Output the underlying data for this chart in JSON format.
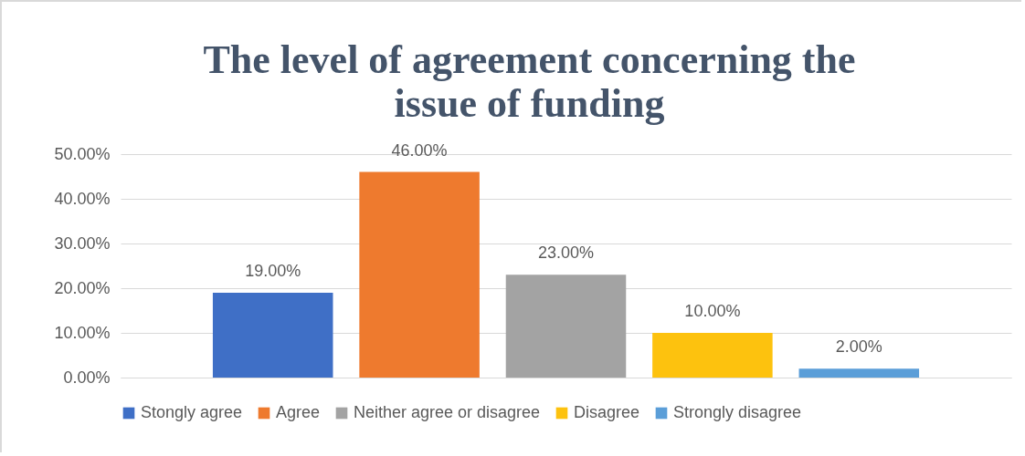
{
  "chart_data": {
    "type": "bar",
    "title": "The level of agreement concerning the issue of funding",
    "categories": [
      null
    ],
    "series": [
      {
        "name": "Stongly agree",
        "color": "#3f6fc6",
        "values": [
          19
        ],
        "value_labels": [
          "19.00%"
        ]
      },
      {
        "name": "Agree",
        "color": "#ee7a2e",
        "values": [
          46
        ],
        "value_labels": [
          "46.00%"
        ]
      },
      {
        "name": "Neither agree or disagree",
        "color": "#a3a3a3",
        "values": [
          23
        ],
        "value_labels": [
          "23.00%"
        ]
      },
      {
        "name": "Disagree",
        "color": "#fdc20e",
        "values": [
          10
        ],
        "value_labels": [
          "10.00%"
        ]
      },
      {
        "name": "Strongly disagree",
        "color": "#5b9ed8",
        "values": [
          2
        ],
        "value_labels": [
          "2.00%"
        ]
      }
    ],
    "ylim": [
      0,
      50
    ],
    "yticks": [
      {
        "value": 0,
        "label": "0.00%"
      },
      {
        "value": 10,
        "label": "10.00%"
      },
      {
        "value": 20,
        "label": "20.00%"
      },
      {
        "value": 30,
        "label": "30.00%"
      },
      {
        "value": 40,
        "label": "40.00%"
      },
      {
        "value": 50,
        "label": "50.00%"
      }
    ],
    "grid": "y",
    "legend": "bottom",
    "tick_labels": "y"
  }
}
